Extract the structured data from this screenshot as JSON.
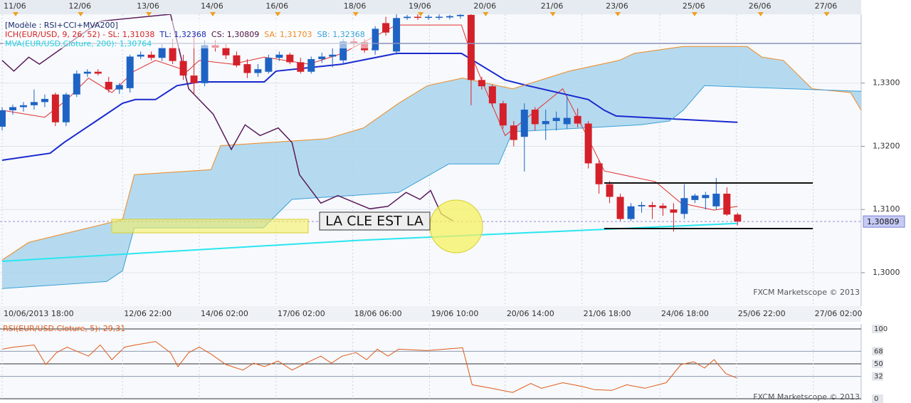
{
  "chart_data": [
    {
      "type": "candlestick",
      "legend": [
        [
          {
            "text": "[Modèle : RSI+CCI+MVA200]",
            "color": "#1a2a6a"
          }
        ],
        [
          {
            "text": "ICH(EUR/USD, 9, 26, 52) - SL: 1,31038",
            "color": "#d42020"
          },
          {
            "text": "TL: 1,32368",
            "color": "#1a2ab0"
          },
          {
            "text": "CS: 1,30809",
            "color": "#4a1040"
          },
          {
            "text": "SA: 1,31703",
            "color": "#f08a20"
          },
          {
            "text": "SB: 1,32368",
            "color": "#3aa0d8"
          }
        ],
        [
          {
            "text": "MVA(EUR/USD.Cloture, 200): 1,30764",
            "color": "#20d0e0"
          }
        ]
      ],
      "watermark": "FXCM Marketscope © 2013",
      "annotation": "LA CLE EST LA",
      "up_color": "#1e63c4",
      "down_color": "#d4202a",
      "cloud_color": "#a9d5ec",
      "x": [
        0,
        1,
        2,
        3,
        4,
        5,
        6,
        7,
        8,
        9,
        10,
        11,
        12,
        13,
        14,
        15,
        16,
        17,
        18,
        19,
        20,
        21,
        22,
        23,
        24,
        25,
        26,
        27,
        28,
        29,
        30,
        31,
        32,
        33,
        34,
        35,
        36,
        37,
        38,
        39,
        40,
        41,
        42,
        43,
        44,
        45,
        46,
        47,
        48,
        49,
        50,
        51,
        52,
        53,
        54,
        55,
        56,
        57,
        58,
        59,
        60,
        61,
        62,
        63,
        64,
        65,
        66,
        67,
        68,
        69
      ],
      "open": [
        1.3231,
        1.3257,
        1.3262,
        1.3265,
        1.327,
        1.3282,
        1.3238,
        1.3282,
        1.3315,
        1.3318,
        1.3302,
        1.329,
        1.3292,
        1.3342,
        1.3345,
        1.334,
        1.3356,
        1.3335,
        1.3312,
        1.33,
        1.336,
        1.3356,
        1.3344,
        1.333,
        1.3316,
        1.3318,
        1.334,
        1.3345,
        1.3333,
        1.3318,
        1.3338,
        1.3342,
        1.3336,
        1.3366,
        1.3365,
        1.3352,
        1.3395,
        1.335,
        1.3403,
        1.3405,
        1.3404,
        1.3405,
        1.3404,
        1.3406,
        1.3408,
        1.3305,
        1.3295,
        1.3268,
        1.3233,
        1.3215,
        1.3258,
        1.3235,
        1.324,
        1.3235,
        1.3248,
        1.3236,
        1.3173,
        1.314,
        1.312,
        1.3085,
        1.3105,
        1.3107,
        1.3106,
        1.31,
        1.3093,
        1.3115,
        1.3118,
        1.3105,
        1.3125,
        1.3092
      ],
      "high": [
        1.3262,
        1.3266,
        1.327,
        1.329,
        1.3282,
        1.3285,
        1.3285,
        1.332,
        1.3322,
        1.3322,
        1.331,
        1.33,
        1.3345,
        1.335,
        1.335,
        1.3362,
        1.337,
        1.3345,
        1.338,
        1.3368,
        1.3368,
        1.3362,
        1.335,
        1.3338,
        1.333,
        1.3345,
        1.335,
        1.3348,
        1.334,
        1.3342,
        1.3348,
        1.3355,
        1.337,
        1.3372,
        1.337,
        1.339,
        1.3405,
        1.3412,
        1.3408,
        1.3409,
        1.3408,
        1.3409,
        1.3408,
        1.3409,
        1.3409,
        1.331,
        1.3298,
        1.3272,
        1.324,
        1.3268,
        1.3262,
        1.3258,
        1.3255,
        1.328,
        1.326,
        1.324,
        1.3178,
        1.3145,
        1.3125,
        1.311,
        1.3112,
        1.3112,
        1.311,
        1.311,
        1.314,
        1.3125,
        1.3128,
        1.315,
        1.3135,
        1.3095
      ],
      "low": [
        1.3225,
        1.325,
        1.3255,
        1.3258,
        1.3262,
        1.3232,
        1.3232,
        1.3278,
        1.331,
        1.3312,
        1.3285,
        1.3283,
        1.3285,
        1.3338,
        1.3336,
        1.3335,
        1.333,
        1.3305,
        1.3282,
        1.3295,
        1.335,
        1.3338,
        1.3325,
        1.3308,
        1.331,
        1.3315,
        1.3335,
        1.333,
        1.3315,
        1.3315,
        1.3332,
        1.3325,
        1.333,
        1.3358,
        1.3348,
        1.3345,
        1.3375,
        1.3345,
        1.34,
        1.34,
        1.34,
        1.34,
        1.3401,
        1.3402,
        1.3265,
        1.329,
        1.3262,
        1.3228,
        1.32,
        1.316,
        1.3225,
        1.321,
        1.3225,
        1.3228,
        1.323,
        1.3165,
        1.3125,
        1.311,
        1.3082,
        1.3082,
        1.3095,
        1.3085,
        1.309,
        1.3065,
        1.3085,
        1.311,
        1.31,
        1.31,
        1.309,
        1.3075
      ],
      "close": [
        1.3257,
        1.3262,
        1.3265,
        1.327,
        1.3275,
        1.3238,
        1.3282,
        1.3315,
        1.3318,
        1.3315,
        1.329,
        1.3297,
        1.3342,
        1.3345,
        1.334,
        1.3356,
        1.3335,
        1.3312,
        1.33,
        1.336,
        1.3356,
        1.3344,
        1.3328,
        1.3316,
        1.3322,
        1.334,
        1.3345,
        1.3333,
        1.3318,
        1.3338,
        1.3342,
        1.3345,
        1.3366,
        1.3362,
        1.3352,
        1.3386,
        1.338,
        1.3403,
        1.3405,
        1.3404,
        1.3405,
        1.3405,
        1.3406,
        1.3408,
        1.3305,
        1.3295,
        1.3268,
        1.3233,
        1.321,
        1.3258,
        1.3235,
        1.324,
        1.3245,
        1.3245,
        1.3236,
        1.3173,
        1.314,
        1.312,
        1.3085,
        1.3105,
        1.3107,
        1.3104,
        1.3102,
        1.3095,
        1.3118,
        1.3122,
        1.3123,
        1.3125,
        1.3092,
        1.30809
      ],
      "lines": [
        {
          "color": "#e23030",
          "width": 1,
          "x": [
            0,
            4.0,
            6.1,
            8.1,
            10.3,
            12.4,
            14.4,
            17.4,
            18.5,
            21.6,
            24.6,
            28.8,
            31.9,
            37.0,
            43.1,
            44.1,
            45.2,
            47.2,
            52.6,
            55.0,
            56.5,
            61.3,
            63.7,
            66.8,
            69.0
          ],
          "values": [
            1.3257,
            1.3246,
            1.3274,
            1.3308,
            1.3285,
            1.3319,
            1.3336,
            1.3319,
            1.3336,
            1.333,
            1.3341,
            1.333,
            1.3347,
            1.3392,
            1.3392,
            1.3341,
            1.3296,
            1.3217,
            1.3291,
            1.3212,
            1.3161,
            1.3144,
            1.311,
            1.3099,
            1.3105
          ]
        },
        {
          "color": "#1a2ad0",
          "width": 2,
          "x": [
            0,
            4.5,
            5.8,
            11.3,
            12.5,
            14.4,
            16.4,
            18.5,
            24.6,
            25.7,
            31.9,
            37.0,
            43.1,
            47.2,
            49.3,
            55.0,
            56.5,
            57.6,
            69.0
          ],
          "values": [
            1.3178,
            1.3189,
            1.3206,
            1.3268,
            1.3274,
            1.3274,
            1.3296,
            1.3302,
            1.3302,
            1.3319,
            1.333,
            1.3347,
            1.3347,
            1.3305,
            1.3296,
            1.3274,
            1.3257,
            1.3248,
            1.3238
          ]
        },
        {
          "color": "#f08a20",
          "width": 1,
          "x": [
            0,
            2.5,
            11.3,
            12.4,
            19.6,
            20.5,
            30.5,
            33.9,
            37.2,
            39.9,
            43.2,
            47.9,
            53.2,
            57.9,
            59.3,
            63.9,
            69.9,
            71.3,
            73.3,
            76.0,
            79.6,
            80.6
          ],
          "values": [
            1.302,
            1.3048,
            1.3084,
            1.3155,
            1.3163,
            1.3201,
            1.3212,
            1.3229,
            1.3268,
            1.3296,
            1.3308,
            1.3291,
            1.3319,
            1.3336,
            1.3347,
            1.3358,
            1.3358,
            1.3341,
            1.3336,
            1.3291,
            1.3285,
            1.3257
          ]
        },
        {
          "color": "#3aa0d8",
          "width": 1,
          "x": [
            0,
            9.8,
            11.3,
            12.4,
            24.5,
            27.2,
            37.2,
            41.9,
            46.6,
            47.9,
            59.9,
            62.6,
            63.9,
            65.9,
            80.6
          ],
          "values": [
            1.2975,
            1.2986,
            1.3003,
            1.3071,
            1.3071,
            1.3116,
            1.3127,
            1.3172,
            1.3172,
            1.3223,
            1.3234,
            1.324,
            1.3257,
            1.3296,
            1.3287
          ]
        },
        {
          "color": "#29e6f0",
          "width": 2,
          "x": [
            0,
            33.2,
            69.0
          ],
          "values": [
            1.3018,
            1.3051,
            1.3078
          ]
        },
        {
          "color": "#5a1a5a",
          "width": 1.5,
          "x": [
            0,
            1.1,
            2.5,
            3.5,
            9.2,
            15.8,
            17.5,
            19.8,
            21.5,
            22.8,
            24.2,
            25.9,
            27.2,
            27.9,
            29.9,
            31.5,
            34.5,
            36.2,
            37.9,
            39.2,
            40.2,
            41.2,
            42.3
          ],
          "values": [
            1.3336,
            1.3319,
            1.3341,
            1.333,
            1.3398,
            1.3409,
            1.3291,
            1.3251,
            1.3195,
            1.3234,
            1.3217,
            1.3229,
            1.3206,
            1.3155,
            1.311,
            1.3122,
            1.3101,
            1.3105,
            1.3127,
            1.3116,
            1.313,
            1.3093,
            1.3082
          ]
        }
      ],
      "last_price": {
        "value": 1.30809,
        "label": "1,30809"
      },
      "xlim": [
        -0.2,
        80.6
      ],
      "ylim": [
        1.2947,
        1.3409
      ],
      "yticks": [
        {
          "value": 1.33,
          "label": "1,3300"
        },
        {
          "value": 1.32,
          "label": "1,3200"
        },
        {
          "value": 1.31,
          "label": "1,3100"
        },
        {
          "value": 1.3,
          "label": "1,3000"
        }
      ],
      "xticks": [
        {
          "value": 0,
          "label": "10/06/2013 18:00"
        },
        {
          "value": 11.3,
          "label": "12/06 22:00"
        },
        {
          "value": 18.5,
          "label": "14/06 02:00"
        },
        {
          "value": 25.7,
          "label": "17/06 02:00"
        },
        {
          "value": 32.9,
          "label": "18/06 06:00"
        },
        {
          "value": 40.1,
          "label": "19/06 10:00"
        },
        {
          "value": 47.2,
          "label": "20/06 14:00"
        },
        {
          "value": 54.4,
          "label": "21/06 18:00"
        },
        {
          "value": 61.7,
          "label": "24/06 18:00"
        },
        {
          "value": 68.9,
          "label": "25/06 22:00"
        },
        {
          "value": 76.1,
          "label": "27/06 02:00"
        }
      ],
      "x2ticks": [
        {
          "value": 0,
          "label": "11/06"
        },
        {
          "value": 6.1,
          "label": "12/06"
        },
        {
          "value": 12.5,
          "label": "13/06"
        },
        {
          "value": 18.5,
          "label": "14/06"
        },
        {
          "value": 24.6,
          "label": "16/06"
        },
        {
          "value": 31.9,
          "label": "18/06"
        },
        {
          "value": 38.0,
          "label": "19/06"
        },
        {
          "value": 44.1,
          "label": "20/06"
        },
        {
          "value": 50.4,
          "label": "21/06"
        },
        {
          "value": 56.5,
          "label": "23/06"
        },
        {
          "value": 63.7,
          "label": "25/06"
        },
        {
          "value": 69.9,
          "label": "26/06"
        },
        {
          "value": 76.1,
          "label": "27/06"
        }
      ],
      "grid": true
    },
    {
      "type": "line",
      "title": "RSI(EUR/USD.Cloture, 5): 29,31",
      "watermark": "FXCM Marketscope © 2013",
      "color": "#e05a1a",
      "x": [
        0,
        1.1,
        3.0,
        4.1,
        5.1,
        6.1,
        8.1,
        9.2,
        10.3,
        11.5,
        12.5,
        14.4,
        15.8,
        16.5,
        17.5,
        18.5,
        19.6,
        21.0,
        22.6,
        23.6,
        24.6,
        25.9,
        27.2,
        28.5,
        29.9,
        30.9,
        31.9,
        33.2,
        34.2,
        35.2,
        36.2,
        37.2,
        39.9,
        43.2,
        44.1,
        45.9,
        47.9,
        49.6,
        50.6,
        52.6,
        53.6,
        54.6,
        55.6,
        57.2,
        58.6,
        60.3,
        62.3,
        63.7,
        64.9,
        65.9,
        66.8,
        67.9,
        69.0
      ],
      "values": [
        71,
        74,
        77,
        49,
        66,
        74,
        61,
        77,
        56,
        74,
        77,
        82,
        66,
        46,
        66,
        74,
        64,
        49,
        41,
        51,
        46,
        54,
        41,
        51,
        61,
        51,
        61,
        66,
        56,
        71,
        61,
        71,
        69,
        73,
        20,
        15,
        9,
        22,
        15,
        23,
        20,
        17,
        13,
        12,
        20,
        15,
        23,
        49,
        53,
        44,
        56,
        36,
        29.31
      ],
      "xlim": [
        -0.2,
        80.6
      ],
      "ylim": [
        -2,
        107.1
      ],
      "yticks": [
        100,
        68,
        50,
        32,
        0
      ],
      "strong_lines": [
        100,
        50,
        0
      ]
    }
  ]
}
